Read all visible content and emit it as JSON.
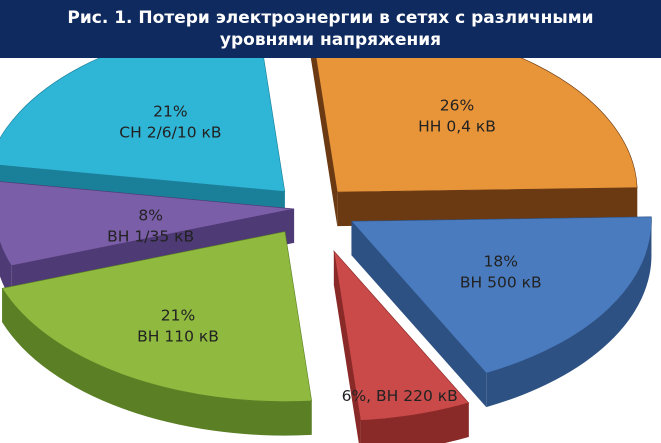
{
  "title_lines": [
    "Рис. 1. Потери электроэнергии в сетях с различными",
    "уровнями напряжения"
  ],
  "colors": {
    "title_bg": "#0f2a5e",
    "title_text": "#ffffff",
    "label_text": "#222222"
  },
  "chart_data": {
    "type": "pie",
    "style": "3d exploded",
    "title": "Рис. 1. Потери электроэнергии в сетях с различными уровнями напряжения",
    "unit": "%",
    "slices": [
      {
        "name": "ВН 500 кВ",
        "value": 18,
        "label_lines": [
          "18%",
          "ВН 500 кВ"
        ],
        "color": "#4a7bbf",
        "side": "#2d5183"
      },
      {
        "name": "ВН 220 кВ",
        "value": 6,
        "label_lines": [
          "6%, ВН 220 кВ"
        ],
        "color": "#c94a48",
        "side": "#8a2a28"
      },
      {
        "name": "ВН 110 кВ",
        "value": 21,
        "label_lines": [
          "21%",
          "ВН 110 кВ"
        ],
        "color": "#8fba3f",
        "side": "#5b7f25"
      },
      {
        "name": "ВН 1/35 кВ",
        "value": 8,
        "label_lines": [
          "8%",
          "ВН 1/35 кВ"
        ],
        "color": "#7a5ea8",
        "side": "#4e3a74"
      },
      {
        "name": "СН 2/6/10 кВ",
        "value": 21,
        "label_lines": [
          "21%",
          "СН 2/6/10 кВ"
        ],
        "color": "#2fb5d6",
        "side": "#1a7f99"
      },
      {
        "name": "НН 0,4 кВ",
        "value": 26,
        "label_lines": [
          "26%",
          "НН 0,4 кВ"
        ],
        "color": "#e8953a",
        "side": "#6b3a12"
      }
    ]
  }
}
